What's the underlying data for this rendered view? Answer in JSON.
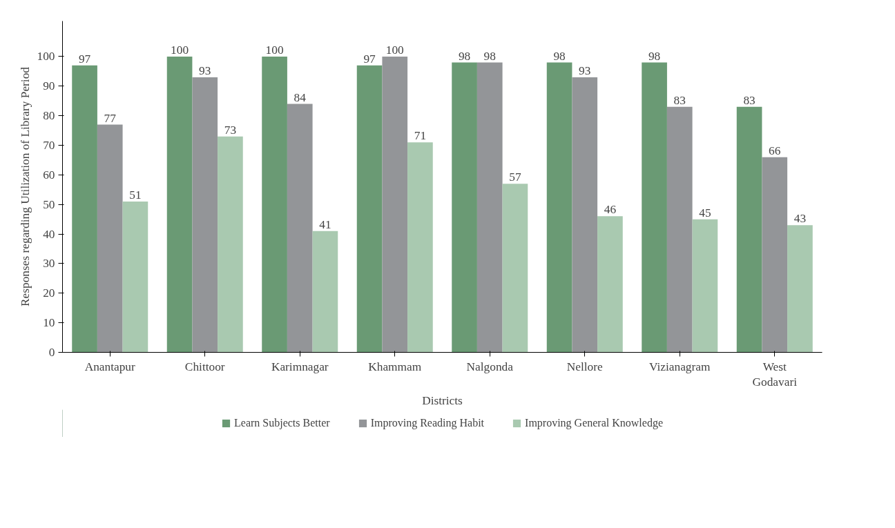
{
  "chart_data": {
    "type": "bar",
    "xlabel": "Districts",
    "ylabel": "Responses regarding Utilization of Library Period",
    "categories": [
      "Anantapur",
      "Chittoor",
      "Karimnagar",
      "Khammam",
      "Nalgonda",
      "Nellore",
      "Vizianagram",
      "West Godavari"
    ],
    "series": [
      {
        "name": "Learn Subjects Better",
        "color": "#6a9a74",
        "values": [
          97,
          100,
          100,
          97,
          98,
          98,
          98,
          83
        ]
      },
      {
        "name": "Improving Reading Habit",
        "color": "#939598",
        "values": [
          77,
          93,
          84,
          100,
          98,
          93,
          83,
          66
        ]
      },
      {
        "name": "Improving General Knowledge",
        "color": "#a9c9b0",
        "values": [
          51,
          73,
          41,
          71,
          57,
          46,
          45,
          43
        ]
      }
    ],
    "ylim": [
      0,
      112
    ],
    "yticks": [
      0,
      10,
      20,
      30,
      40,
      50,
      60,
      70,
      80,
      90,
      100
    ],
    "data_labels": true,
    "grid": false,
    "legend": "bottom"
  }
}
